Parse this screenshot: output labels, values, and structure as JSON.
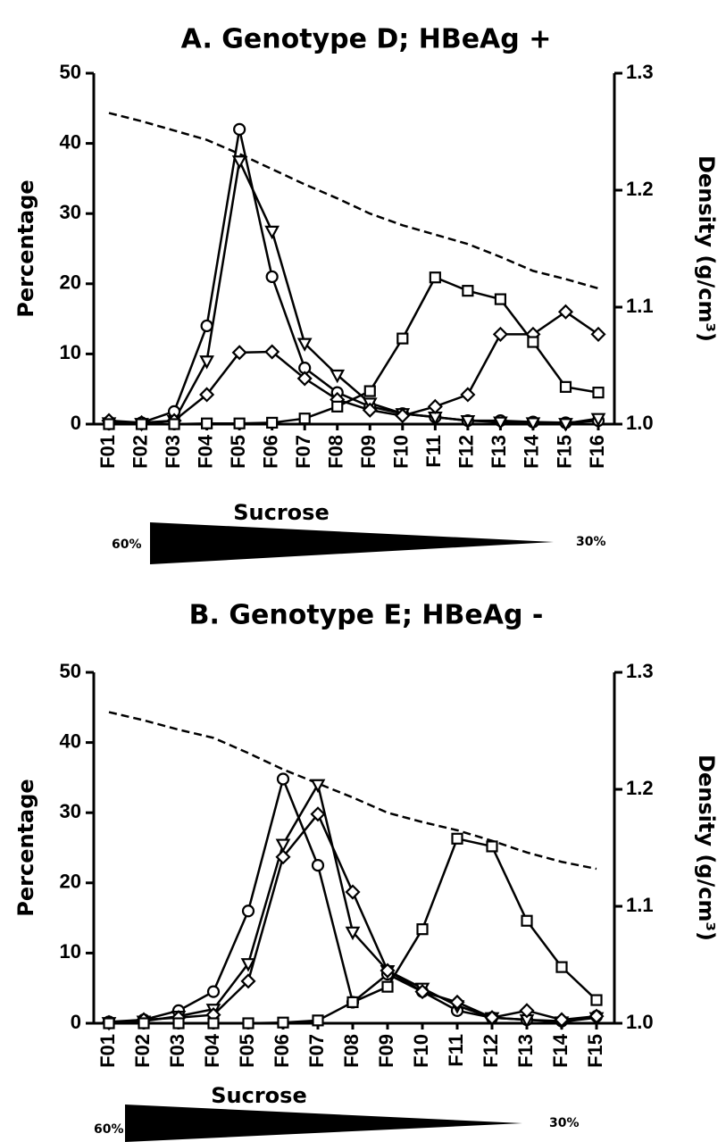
{
  "chart_data": [
    {
      "type": "line",
      "title": "A. Genotype D; HBeAg +",
      "ylabel": "Percentage",
      "y2label": "Density (g/cm³)",
      "xlabel": "Sucrose",
      "annotations": [
        "60%",
        "30%"
      ],
      "categories": [
        "F01",
        "F02",
        "F03",
        "F04",
        "F05",
        "F06",
        "F07",
        "F08",
        "F09",
        "F10",
        "F11",
        "F12",
        "F13",
        "F14",
        "F15",
        "F16"
      ],
      "ylim": [
        0,
        50
      ],
      "yticks": [
        0,
        10,
        20,
        30,
        40,
        50
      ],
      "y2lim": [
        1.0,
        1.3
      ],
      "y2ticks": [
        {
          "value": 1.0,
          "label": "1.0"
        },
        {
          "value": 1.1,
          "label": "1.1"
        },
        {
          "value": 1.2,
          "label": "1.2"
        },
        {
          "value": 1.3,
          "label": "1.3"
        }
      ],
      "series": [
        {
          "marker": "circle",
          "color": "#000000",
          "values": [
            0.3,
            0.2,
            1.8,
            14,
            42,
            21,
            8,
            4.5,
            2.5,
            1.5,
            1,
            0.5,
            0.5,
            0.3,
            0.2,
            0.5
          ]
        },
        {
          "marker": "triangle-down",
          "color": "#000000",
          "values": [
            0.2,
            0.1,
            0.5,
            9,
            37.5,
            27.5,
            11.5,
            7,
            3,
            1.5,
            1,
            0.5,
            0.3,
            0.2,
            0.1,
            0.8
          ]
        },
        {
          "marker": "diamond",
          "color": "#000000",
          "values": [
            0.5,
            0.2,
            0.5,
            4.2,
            10.2,
            10.3,
            6.5,
            3.5,
            2,
            1.2,
            2.5,
            4.2,
            12.8,
            12.8,
            16,
            12.8
          ]
        },
        {
          "marker": "square",
          "color": "#000000",
          "values": [
            0,
            0,
            0,
            0.1,
            0.1,
            0.2,
            0.8,
            2.5,
            4.7,
            12.2,
            20.9,
            19,
            17.8,
            11.7,
            5.3,
            4.5
          ]
        },
        {
          "marker": "none",
          "style": "dashed",
          "axis": "y2",
          "color": "#000000",
          "values": [
            1.266,
            1.259,
            1.251,
            1.243,
            1.231,
            1.218,
            1.205,
            1.193,
            1.18,
            1.17,
            1.162,
            1.154,
            1.143,
            1.131,
            1.124,
            1.116
          ]
        }
      ]
    },
    {
      "type": "line",
      "title": "B. Genotype E; HBeAg -",
      "ylabel": "Percentage",
      "y2label": "Density (g/cm³)",
      "xlabel": "Sucrose",
      "annotations": [
        "60%",
        "30%"
      ],
      "categories": [
        "F01",
        "F02",
        "F03",
        "F04",
        "F05",
        "F06",
        "F07",
        "F08",
        "F09",
        "F10",
        "F11",
        "F12",
        "F13",
        "F14",
        "F15"
      ],
      "ylim": [
        0,
        50
      ],
      "yticks": [
        0,
        10,
        20,
        30,
        40,
        50
      ],
      "y2lim": [
        1.0,
        1.3
      ],
      "y2ticks": [
        {
          "value": 1.0,
          "label": "1.0"
        },
        {
          "value": 1.1,
          "label": "1.1"
        },
        {
          "value": 1.2,
          "label": "1.2"
        },
        {
          "value": 1.3,
          "label": "1.3"
        }
      ],
      "series": [
        {
          "marker": "circle",
          "color": "#000000",
          "values": [
            0.2,
            0.5,
            1.8,
            4.5,
            16,
            34.8,
            22.5,
            3,
            7,
            4.5,
            1.8,
            0.8,
            0.5,
            0.3,
            1
          ]
        },
        {
          "marker": "triangle-down",
          "color": "#000000",
          "values": [
            0.1,
            0.3,
            1,
            2,
            8.5,
            25.5,
            34,
            13,
            7.5,
            5,
            2.5,
            0.8,
            0.5,
            0.2,
            0.8
          ]
        },
        {
          "marker": "diamond",
          "color": "#000000",
          "values": [
            0.1,
            0.5,
            0.8,
            1.2,
            6,
            23.7,
            29.8,
            18.7,
            7.5,
            4.5,
            3,
            0.8,
            1.8,
            0.5,
            1
          ]
        },
        {
          "marker": "square",
          "color": "#000000",
          "values": [
            0,
            0,
            0,
            0,
            0,
            0.1,
            0.4,
            3,
            5.2,
            13.4,
            26.3,
            25.2,
            14.6,
            8,
            3.3
          ]
        },
        {
          "marker": "none",
          "style": "dashed",
          "axis": "y2",
          "color": "#000000",
          "values": [
            1.266,
            1.259,
            1.251,
            1.244,
            1.231,
            1.217,
            1.205,
            1.193,
            1.18,
            1.172,
            1.165,
            1.156,
            1.146,
            1.138,
            1.132
          ]
        }
      ]
    }
  ]
}
